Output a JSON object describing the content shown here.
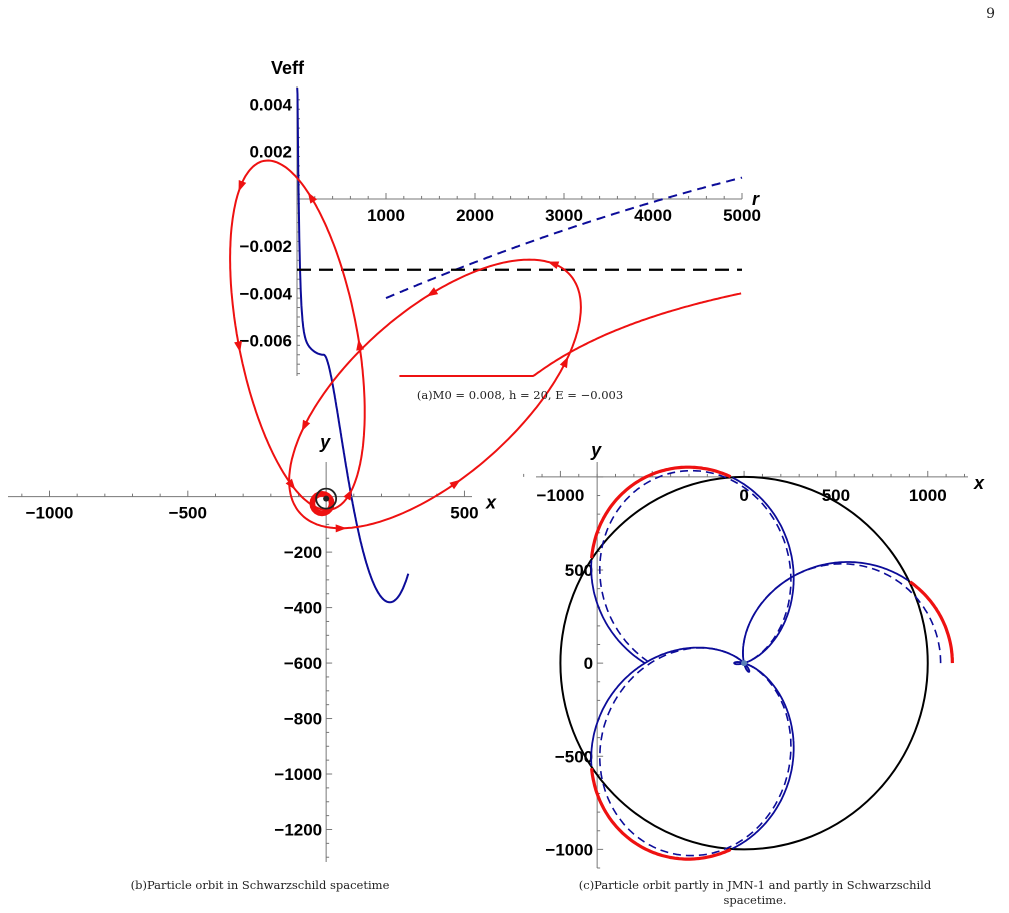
{
  "page": {
    "number": "9"
  },
  "captions": {
    "a": "(a)M0 = 0.008, h = 20, E = −0.003",
    "b": "(b)Particle orbit in Schwarzschild spacetime",
    "c_line1": "(c)Particle orbit partly in JMN-1 and partly in Schwarzschild",
    "c_line2": "spacetime."
  },
  "chart_data": [
    {
      "id": "a",
      "type": "line",
      "xlabel": "r",
      "ylabel": "Veff",
      "xlim": [
        0,
        5000
      ],
      "ylim": [
        -0.0075,
        0.0047
      ],
      "x_ticks": [
        1000,
        2000,
        3000,
        4000,
        5000
      ],
      "x_tick_labels": [
        "1000",
        "2000",
        "3000",
        "4000",
        "5000"
      ],
      "y_ticks": [
        0.004,
        0.002,
        -0.002,
        -0.004,
        -0.006
      ],
      "y_tick_labels": [
        "0.004",
        "0.002",
        "−0.002",
        "−0.004",
        "−0.006"
      ],
      "params": {
        "M0": 0.008,
        "h": 20,
        "E": -0.003
      },
      "series": [
        {
          "style": "solid",
          "color": "#0c0c99"
        },
        {
          "style": "dashed",
          "color": "#0c0c99"
        },
        {
          "style": "solid",
          "color": "#ee1111"
        },
        {
          "style": "dashed",
          "color": "#ee1111"
        },
        {
          "style": "dashed",
          "color": "#000000",
          "value": -0.003
        }
      ]
    },
    {
      "id": "b",
      "type": "line",
      "xlabel": "x",
      "ylabel": "y",
      "xlim": [
        -1150,
        520
      ],
      "ylim": [
        -1310,
        60
      ],
      "x_ticks": [
        -1000,
        -500,
        500
      ],
      "x_tick_labels": [
        "−1000",
        "−500",
        "500"
      ],
      "y_ticks": [
        -200,
        -400,
        -600,
        -800,
        -1000,
        -1200
      ],
      "y_tick_labels": [
        "−200",
        "−400",
        "−600",
        "−800",
        "−1000",
        "−1200"
      ],
      "series": [
        {
          "color": "#ee1111"
        }
      ]
    },
    {
      "id": "c",
      "type": "line",
      "xlabel": "x",
      "ylabel": "y",
      "xlim": [
        -1220,
        1230
      ],
      "ylim": [
        -1100,
        1080
      ],
      "x_ticks": [
        -1000,
        0,
        500,
        1000
      ],
      "x_tick_labels": [
        "−1000",
        "0",
        "500",
        "1000"
      ],
      "y_ticks": [
        500,
        0,
        -500,
        -1000
      ],
      "y_tick_labels": [
        "500",
        "0",
        "−500",
        "−1000"
      ],
      "boundary_radius": 1000,
      "series": [
        {
          "color": "#0c0c99",
          "style": "solid"
        },
        {
          "color": "#0c0c99",
          "style": "dashed"
        },
        {
          "color": "#ee1111",
          "style": "solid"
        },
        {
          "color": "#000000",
          "style": "solid"
        }
      ]
    }
  ]
}
